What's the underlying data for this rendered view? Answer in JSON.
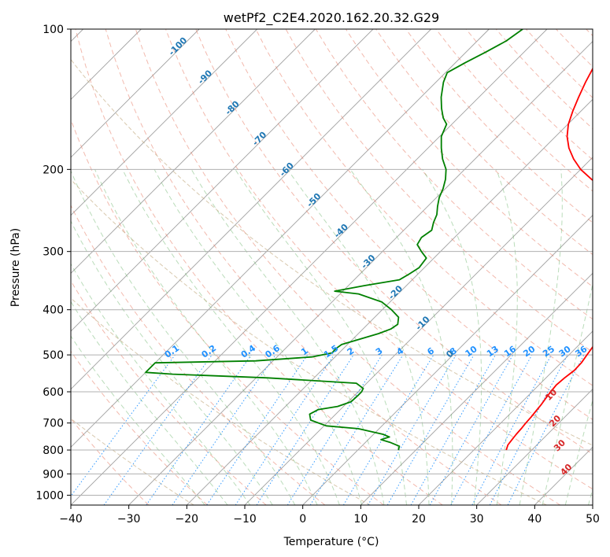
{
  "chart_data": {
    "type": "line",
    "title": "wetPf2_C2E4.2020.162.20.32.G29",
    "xlabel": "Temperature (°C)",
    "ylabel": "Pressure (hPa)",
    "xlim": [
      -40,
      50
    ],
    "ylim": [
      1050,
      100
    ],
    "y_scale": "log",
    "skew": "skew-T log-P",
    "grid": true,
    "x_ticks": [
      -40,
      -30,
      -20,
      -10,
      0,
      10,
      20,
      30,
      40,
      50
    ],
    "y_ticks": [
      1000,
      900,
      800,
      700,
      600,
      500,
      400,
      300,
      200,
      100
    ],
    "series": [
      {
        "role": "temperature",
        "color": "#ff0000",
        "points": [
          [
            25.6,
            800
          ],
          [
            25.0,
            780
          ],
          [
            24.8,
            760
          ],
          [
            24.6,
            740
          ],
          [
            24.5,
            720
          ],
          [
            24.3,
            700
          ],
          [
            24.2,
            680
          ],
          [
            24.0,
            660
          ],
          [
            23.8,
            640
          ],
          [
            23.5,
            620
          ],
          [
            23.2,
            600
          ],
          [
            23.0,
            580
          ],
          [
            23.2,
            560
          ],
          [
            23.4,
            550
          ],
          [
            23.6,
            540
          ],
          [
            23.5,
            520
          ],
          [
            23.1,
            500
          ],
          [
            22.7,
            480
          ],
          [
            22.2,
            460
          ],
          [
            21.7,
            440
          ],
          [
            21.2,
            420
          ],
          [
            20.4,
            400
          ],
          [
            18.6,
            380
          ],
          [
            16.6,
            360
          ],
          [
            14.7,
            340
          ],
          [
            12.8,
            320
          ],
          [
            10.8,
            300
          ],
          [
            8.2,
            280
          ],
          [
            5.3,
            260
          ],
          [
            1.9,
            240
          ],
          [
            -2.8,
            220
          ],
          [
            -6.4,
            210
          ],
          [
            -10.0,
            200
          ],
          [
            -13.0,
            190
          ],
          [
            -15.7,
            180
          ],
          [
            -18.0,
            170
          ],
          [
            -19.9,
            160
          ],
          [
            -21.4,
            150
          ],
          [
            -22.8,
            140
          ],
          [
            -24.2,
            130
          ],
          [
            -25.5,
            120
          ],
          [
            -26.3,
            115
          ],
          [
            -25.6,
            110
          ],
          [
            -23.7,
            105
          ],
          [
            -22.6,
            100
          ]
        ]
      },
      {
        "role": "dewpoint",
        "color": "#008000",
        "points": [
          [
            7.0,
            800
          ],
          [
            6.5,
            785
          ],
          [
            4.2,
            770
          ],
          [
            2.2,
            760
          ],
          [
            3.2,
            750
          ],
          [
            1.6,
            740
          ],
          [
            -3.6,
            720
          ],
          [
            -9.6,
            710
          ],
          [
            -13.3,
            690
          ],
          [
            -14.5,
            670
          ],
          [
            -13.8,
            655
          ],
          [
            -11.0,
            645
          ],
          [
            -9.5,
            630
          ],
          [
            -9.4,
            610
          ],
          [
            -9.4,
            600
          ],
          [
            -9.7,
            590
          ],
          [
            -11.8,
            575
          ],
          [
            -28.0,
            560
          ],
          [
            -45.0,
            550
          ],
          [
            -50.0,
            545
          ],
          [
            -50.0,
            520
          ],
          [
            -33.0,
            515
          ],
          [
            -24.0,
            505
          ],
          [
            -21.2,
            495
          ],
          [
            -21.3,
            485
          ],
          [
            -21.0,
            475
          ],
          [
            -19.2,
            465
          ],
          [
            -16.5,
            450
          ],
          [
            -15.2,
            440
          ],
          [
            -14.8,
            430
          ],
          [
            -15.9,
            415
          ],
          [
            -18.4,
            400
          ],
          [
            -21.4,
            385
          ],
          [
            -26.8,
            370
          ],
          [
            -31.4,
            365
          ],
          [
            -27.2,
            355
          ],
          [
            -22.2,
            345
          ],
          [
            -21.5,
            335
          ],
          [
            -20.9,
            325
          ],
          [
            -21.3,
            310
          ],
          [
            -23.3,
            300
          ],
          [
            -25.2,
            290
          ],
          [
            -25.7,
            280
          ],
          [
            -25.2,
            270
          ],
          [
            -26.2,
            260
          ],
          [
            -27.0,
            250
          ],
          [
            -28.3,
            240
          ],
          [
            -29.5,
            230
          ],
          [
            -30.4,
            220
          ],
          [
            -31.6,
            210
          ],
          [
            -33.2,
            200
          ],
          [
            -35.6,
            190
          ],
          [
            -37.7,
            180
          ],
          [
            -39.7,
            170
          ],
          [
            -40.9,
            160
          ],
          [
            -42.6,
            155
          ],
          [
            -44.5,
            148
          ],
          [
            -46.5,
            140
          ],
          [
            -48.7,
            130
          ],
          [
            -49.7,
            124
          ],
          [
            -48.3,
            118
          ],
          [
            -46.6,
            112
          ],
          [
            -45.0,
            106
          ],
          [
            -44.2,
            100
          ]
        ]
      }
    ],
    "dry_adiabat_labels": [
      "-100",
      "-90",
      "-80",
      "-70",
      "-60",
      "-50",
      "-40",
      "-30",
      "-20",
      "-10",
      "0"
    ],
    "mixing_ratio_labels": [
      "0.1",
      "0.2",
      "0.4",
      "0.6",
      "1",
      "1.5",
      "2",
      "3",
      "4",
      "6",
      "8",
      "10",
      "13",
      "16",
      "20",
      "25",
      "30",
      "36"
    ],
    "moist_adiabat_labels": [
      "10",
      "20",
      "30",
      "40"
    ]
  }
}
